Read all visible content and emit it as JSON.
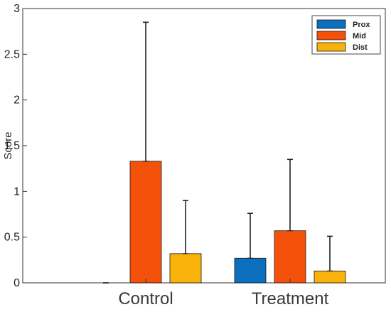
{
  "chart_data": {
    "type": "bar",
    "ylabel": "Score",
    "xlabel": "",
    "ylim": [
      0,
      3
    ],
    "yticks": [
      "0",
      "0.5",
      "1",
      "1.5",
      "2",
      "2.5",
      "3"
    ],
    "categories": [
      "Control",
      "Treatment"
    ],
    "series": [
      {
        "name": "Prox",
        "color": "#0c6fbd",
        "values": [
          0,
          0.27
        ],
        "errors": [
          0,
          0.76
        ]
      },
      {
        "name": "Mid",
        "color": "#f4520b",
        "values": [
          1.33,
          0.57
        ],
        "errors": [
          2.85,
          1.35
        ]
      },
      {
        "name": "Dist",
        "color": "#f8b20a",
        "values": [
          0.32,
          0.13
        ],
        "errors": [
          0.9,
          0.51
        ]
      }
    ],
    "legend_position": "top-right",
    "grid": false
  }
}
